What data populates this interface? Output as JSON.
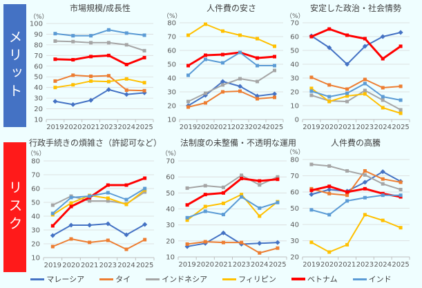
{
  "side_labels": {
    "merit": "メリット",
    "risk": "リスク"
  },
  "legend_order": [
    "malaysia",
    "thailand",
    "indonesia",
    "philippines",
    "vietnam",
    "india"
  ],
  "series_meta": {
    "malaysia": {
      "name": "マレーシア",
      "color": "#4472c4"
    },
    "thailand": {
      "name": "タイ",
      "color": "#ed7d31"
    },
    "indonesia": {
      "name": "インドネシア",
      "color": "#a5a5a5"
    },
    "philippines": {
      "name": "フィリピン",
      "color": "#ffc000"
    },
    "vietnam": {
      "name": "ベトナム",
      "color": "#ff0000"
    },
    "india": {
      "name": "インド",
      "color": "#5b9bd5"
    }
  },
  "chart_data": [
    {
      "type": "line",
      "title": "市場規模/成長性",
      "unit": "（%）",
      "categories": [
        "2019",
        "2020",
        "2021",
        "2023",
        "2024",
        "2025"
      ],
      "ylim": [
        10,
        100
      ],
      "ystep": 10,
      "grid": true,
      "series": {
        "malaysia": [
          27,
          24,
          28,
          38,
          33.5,
          35
        ],
        "thailand": [
          46,
          51.5,
          50.5,
          51,
          37.5,
          37
        ],
        "indonesia": [
          83.5,
          83,
          82,
          82,
          80,
          74.5
        ],
        "philippines": [
          40,
          42.5,
          46,
          45.5,
          48,
          44.5
        ],
        "vietnam": [
          66.5,
          66,
          69,
          70,
          61.5,
          68
        ],
        "india": [
          90.5,
          88.5,
          88.5,
          94,
          91,
          89
        ]
      }
    },
    {
      "type": "line",
      "title": "人件費の安さ",
      "unit": "（%）",
      "categories": [
        "2019",
        "2020",
        "2021",
        "2023",
        "2024",
        "2025"
      ],
      "ylim": [
        10,
        80
      ],
      "ystep": 10,
      "grid": true,
      "series": {
        "malaysia": [
          20,
          27.5,
          37.5,
          34,
          27,
          28.5
        ],
        "thailand": [
          19,
          22,
          30,
          30.5,
          25,
          26
        ],
        "indonesia": [
          23,
          29,
          35,
          39.5,
          37.5,
          45.5
        ],
        "philippines": [
          71,
          79,
          74,
          71,
          68.5,
          63
        ],
        "vietnam": [
          49,
          56.5,
          57,
          58.5,
          54.5,
          55.5
        ],
        "india": [
          42,
          53.5,
          51,
          58.5,
          49,
          49
        ]
      }
    },
    {
      "type": "line",
      "title": "安定した政治・社会情勢",
      "unit": "（%）",
      "categories": [
        "2019",
        "2020",
        "2021",
        "2023",
        "2024",
        "2025"
      ],
      "ylim": [
        0,
        70
      ],
      "ystep": 10,
      "grid": true,
      "series": {
        "malaysia": [
          60.5,
          52,
          40,
          53,
          60,
          63
        ],
        "thailand": [
          30.5,
          25,
          22,
          29,
          23,
          24
        ],
        "indonesia": [
          17.5,
          13.5,
          13,
          21,
          14,
          7
        ],
        "philippines": [
          22.5,
          13,
          17,
          18.5,
          8.5,
          4.5
        ],
        "vietnam": [
          60,
          65.5,
          61,
          58.5,
          44,
          53
        ],
        "india": [
          20.5,
          16.5,
          19,
          26,
          16.5,
          14
        ]
      }
    },
    {
      "type": "line",
      "title": "行政手続きの煩雑さ（許認可など）",
      "unit": "（%）",
      "categories": [
        "2019",
        "2020",
        "2021",
        "2023",
        "2024",
        "2025"
      ],
      "ylim": [
        10,
        80
      ],
      "ystep": 10,
      "grid": true,
      "series": {
        "malaysia": [
          26,
          33.5,
          33.5,
          34.5,
          26.5,
          34
        ],
        "thailand": [
          18,
          23.5,
          21,
          22.5,
          16,
          23
        ],
        "indonesia": [
          48,
          54.5,
          51,
          51,
          49,
          57.5
        ],
        "philippines": [
          41,
          49.5,
          55,
          53,
          48.5,
          59
        ],
        "vietnam": [
          33,
          47,
          53.5,
          62.5,
          62.5,
          67.5
        ],
        "india": [
          42,
          53.5,
          54.5,
          57,
          52,
          60
        ]
      }
    },
    {
      "type": "line",
      "title": "法制度の未整備・不透明な運用",
      "unit": "（%）",
      "categories": [
        "2019",
        "2020",
        "2021",
        "2023",
        "2024",
        "2025"
      ],
      "ylim": [
        10,
        70
      ],
      "ystep": 10,
      "grid": true,
      "series": {
        "malaysia": [
          16.5,
          18.5,
          25,
          18,
          18.5,
          19
        ],
        "thailand": [
          18,
          19.5,
          19,
          19,
          12.5,
          15.5
        ],
        "indonesia": [
          53,
          54.5,
          53.5,
          61,
          55,
          60
        ],
        "philippines": [
          33,
          41.5,
          43.5,
          49,
          35.5,
          44.5
        ],
        "vietnam": [
          42.5,
          49,
          50,
          59,
          57.5,
          58.5
        ],
        "india": [
          34.5,
          38.5,
          36.5,
          47.5,
          40.5,
          44
        ]
      }
    },
    {
      "type": "line",
      "title": "人件費の高騰",
      "unit": "（%）",
      "categories": [
        "2019",
        "2020",
        "2021",
        "2023",
        "2024",
        "2025"
      ],
      "ylim": [
        20,
        80
      ],
      "ystep": 10,
      "grid": true,
      "series": {
        "malaysia": [
          58.5,
          61.5,
          60.5,
          66,
          72.5,
          66.5
        ],
        "thailand": [
          62,
          59,
          58,
          73,
          68,
          66
        ],
        "indonesia": [
          77,
          76,
          73,
          70.5,
          65,
          61.5
        ],
        "philippines": [
          29,
          23,
          27.5,
          46,
          42.5,
          38
        ],
        "vietnam": [
          61,
          63.5,
          60,
          62,
          59,
          57
        ],
        "india": [
          49,
          46,
          54.5,
          56.5,
          58,
          58
        ]
      }
    }
  ]
}
